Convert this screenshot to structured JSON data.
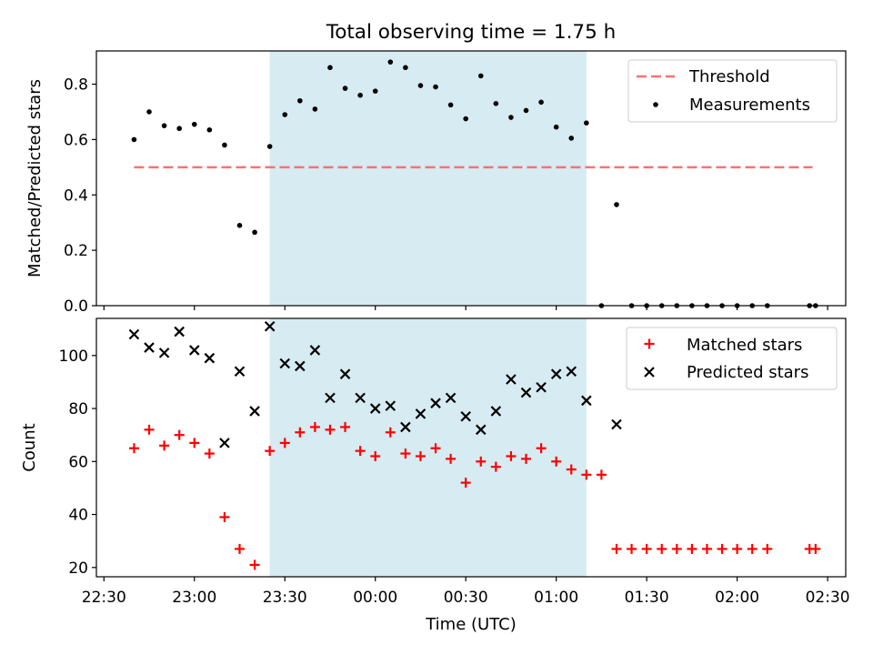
{
  "figure": {
    "title": "Total observing time = 1.75 h"
  },
  "chart_data": [
    {
      "type": "scatter",
      "ylabel": "Matched/Predicted stars",
      "xlabel": "",
      "ylim": [
        0.0,
        0.92
      ],
      "yticks": [
        0.0,
        0.2,
        0.4,
        0.6,
        0.8
      ],
      "ytick_labels": [
        "0.0",
        "0.2",
        "0.4",
        "0.6",
        "0.8"
      ],
      "highlight_span": {
        "x_start": "23:25",
        "x_end": "01:10",
        "color": "#add8e6"
      },
      "threshold": {
        "name": "Threshold",
        "value": 0.5,
        "x_start": "22:40",
        "x_end": "02:25",
        "color": "#ff7070",
        "style": "dashed"
      },
      "legend": {
        "placement": "top-right",
        "entries": [
          "Threshold",
          "Measurements"
        ]
      },
      "series": [
        {
          "name": "Measurements",
          "color": "#000000",
          "marker": "dot",
          "x": [
            "22:40",
            "22:45",
            "22:50",
            "22:55",
            "23:00",
            "23:05",
            "23:10",
            "23:15",
            "23:20",
            "23:25",
            "23:30",
            "23:35",
            "23:40",
            "23:45",
            "23:50",
            "23:55",
            "00:00",
            "00:05",
            "00:10",
            "00:15",
            "00:20",
            "00:25",
            "00:30",
            "00:35",
            "00:40",
            "00:45",
            "00:50",
            "00:55",
            "01:00",
            "01:05",
            "01:10",
            "01:15",
            "01:20",
            "01:25",
            "01:30",
            "01:35",
            "01:40",
            "01:45",
            "01:50",
            "01:55",
            "02:00",
            "02:05",
            "02:10",
            "02:24",
            "02:26"
          ],
          "y": [
            0.6,
            0.7,
            0.65,
            0.64,
            0.655,
            0.635,
            0.58,
            0.29,
            0.265,
            0.575,
            0.69,
            0.74,
            0.71,
            0.86,
            0.785,
            0.76,
            0.775,
            0.88,
            0.86,
            0.795,
            0.79,
            0.725,
            0.675,
            0.83,
            0.73,
            0.68,
            0.705,
            0.735,
            0.645,
            0.605,
            0.66,
            0.0,
            0.365,
            0.0,
            0.0,
            0.0,
            0.0,
            0.0,
            0.0,
            0.0,
            0.0,
            0.0,
            0.0,
            0.0,
            0.0
          ]
        }
      ]
    },
    {
      "type": "scatter",
      "ylabel": "Count",
      "xlabel": "Time (UTC)",
      "ylim": [
        16.5,
        114
      ],
      "yticks": [
        20,
        40,
        60,
        80,
        100
      ],
      "ytick_labels": [
        "20",
        "40",
        "60",
        "80",
        "100"
      ],
      "xticks": [
        "22:30",
        "23:00",
        "23:30",
        "00:00",
        "00:30",
        "01:00",
        "01:30",
        "02:00",
        "02:30"
      ],
      "highlight_span": {
        "x_start": "23:25",
        "x_end": "01:10",
        "color": "#add8e6"
      },
      "legend": {
        "placement": "top-right",
        "entries": [
          "Matched stars",
          "Predicted stars"
        ]
      },
      "series": [
        {
          "name": "Matched stars",
          "color": "#ff0000",
          "marker": "plus",
          "x": [
            "22:40",
            "22:45",
            "22:50",
            "22:55",
            "23:00",
            "23:05",
            "23:10",
            "23:15",
            "23:20",
            "23:25",
            "23:30",
            "23:35",
            "23:40",
            "23:45",
            "23:50",
            "23:55",
            "00:00",
            "00:05",
            "00:10",
            "00:15",
            "00:20",
            "00:25",
            "00:30",
            "00:35",
            "00:40",
            "00:45",
            "00:50",
            "00:55",
            "01:00",
            "01:05",
            "01:10",
            "01:15",
            "01:20",
            "01:25",
            "01:30",
            "01:35",
            "01:40",
            "01:45",
            "01:50",
            "01:55",
            "02:00",
            "02:05",
            "02:10",
            "02:24",
            "02:26"
          ],
          "y": [
            65,
            72,
            66,
            70,
            67,
            63,
            39,
            27,
            21,
            64,
            67,
            71,
            73,
            72,
            73,
            64,
            62,
            71,
            63,
            62,
            65,
            61,
            52,
            60,
            58,
            62,
            61,
            65,
            60,
            57,
            55,
            55,
            27,
            27,
            27,
            27,
            27,
            27,
            27,
            27,
            27,
            27,
            27,
            27,
            27
          ]
        },
        {
          "name": "Predicted stars",
          "color": "#000000",
          "marker": "x",
          "x": [
            "22:40",
            "22:45",
            "22:50",
            "22:55",
            "23:00",
            "23:05",
            "23:10",
            "23:15",
            "23:20",
            "23:25",
            "23:30",
            "23:35",
            "23:40",
            "23:45",
            "23:50",
            "23:55",
            "00:00",
            "00:05",
            "00:10",
            "00:15",
            "00:20",
            "00:25",
            "00:30",
            "00:35",
            "00:40",
            "00:45",
            "00:50",
            "00:55",
            "01:00",
            "01:05",
            "01:10",
            "01:20"
          ],
          "y": [
            108,
            103,
            101,
            109,
            102,
            99,
            67,
            94,
            79,
            111,
            97,
            96,
            102,
            84,
            93,
            84,
            80,
            81,
            73,
            78,
            82,
            84,
            77,
            72,
            79,
            91,
            86,
            88,
            93,
            94,
            83,
            74
          ]
        }
      ]
    }
  ]
}
